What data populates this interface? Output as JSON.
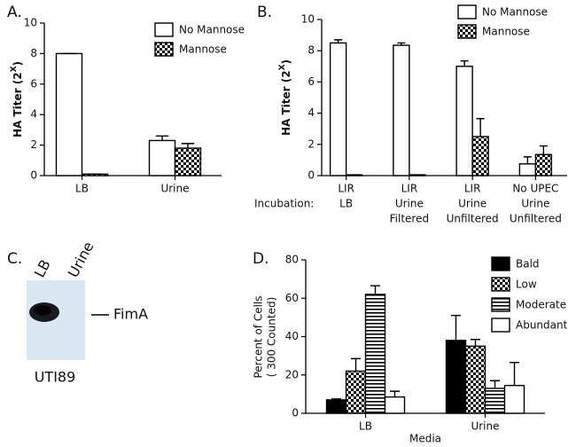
{
  "chart_data": [
    {
      "type": "bar",
      "panel": "A.",
      "y_label": [
        "HA Titer (2",
        "X",
        ")"
      ],
      "categories": [
        "LB",
        "Urine"
      ],
      "series": [
        {
          "name": "No Mannose",
          "color": "#ffffff",
          "pattern": null,
          "values": [
            8,
            2.3
          ],
          "errors": [
            0,
            0.3
          ]
        },
        {
          "name": "Mannose",
          "color": "#000000",
          "pattern": "checker",
          "values": [
            0.1,
            1.8
          ],
          "errors": [
            0,
            0.3
          ]
        }
      ],
      "ylim": [
        0,
        10
      ],
      "yticks": [
        0,
        2,
        4,
        6,
        8,
        10
      ],
      "legend": "top-right"
    },
    {
      "type": "bar",
      "panel": "B.",
      "y_label": [
        "HA Titer (2",
        "X",
        ")"
      ],
      "x_row_label": "Incubation:",
      "categories": [
        [
          "LIR",
          "LB"
        ],
        [
          "LIR",
          "Urine",
          "Filtered"
        ],
        [
          "LIR",
          "Urine",
          "Unfiltered"
        ],
        [
          "No UPEC",
          "Urine",
          "Unfiltered"
        ]
      ],
      "series": [
        {
          "name": "No Mannose",
          "color": "#ffffff",
          "pattern": null,
          "values": [
            8.5,
            8.35,
            7.0,
            0.75
          ],
          "errors": [
            0.2,
            0.15,
            0.35,
            0.45
          ]
        },
        {
          "name": "Mannose",
          "color": "#000000",
          "pattern": "checker",
          "values": [
            0.05,
            0.05,
            2.5,
            1.35
          ],
          "errors": [
            0,
            0,
            1.15,
            0.55
          ]
        }
      ],
      "ylim": [
        0,
        10
      ],
      "yticks": [
        0,
        2,
        4,
        6,
        8,
        10
      ],
      "legend": "top-right"
    },
    {
      "type": "bar",
      "panel": "D.",
      "y_label": [
        "Percent of Cells",
        "( 300 Counted)"
      ],
      "x_label": "Media",
      "categories": [
        "LB",
        "Urine"
      ],
      "series": [
        {
          "name": "Bald",
          "color": "#000000",
          "pattern": null,
          "values": [
            7,
            38
          ],
          "errors": [
            0.5,
            13
          ]
        },
        {
          "name": "Low",
          "color": "#000000",
          "pattern": "checker",
          "values": [
            22,
            35
          ],
          "errors": [
            6.5,
            3.5
          ]
        },
        {
          "name": "Moderate",
          "color": "#000000",
          "pattern": "stripes",
          "values": [
            62,
            13
          ],
          "errors": [
            4.5,
            4
          ]
        },
        {
          "name": "Abundant",
          "color": "#ffffff",
          "pattern": null,
          "values": [
            8.5,
            14.5
          ],
          "errors": [
            3,
            12
          ]
        }
      ],
      "ylim": [
        0,
        80
      ],
      "yticks": [
        0,
        20,
        40,
        60,
        80
      ],
      "legend": "right"
    }
  ],
  "blot": {
    "panel": "C.",
    "lanes": [
      "LB",
      "Urine"
    ],
    "band": "FimA",
    "strain": "UTI89"
  }
}
